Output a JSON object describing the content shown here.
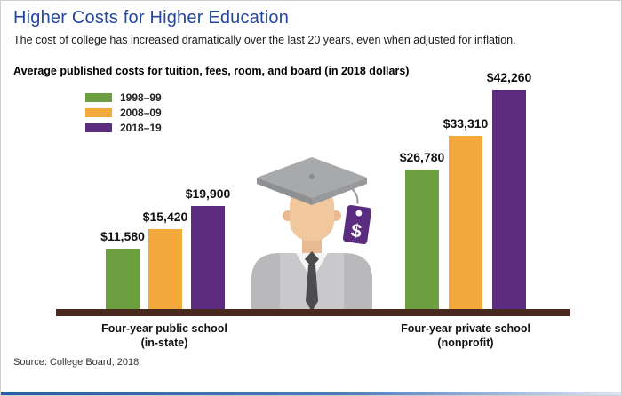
{
  "page": {
    "title": "Higher Costs for Higher Education",
    "subtitle": "The cost of college has increased dramatically over the last 20 years, even when adjusted for inflation.",
    "source": "Source: College Board, 2018"
  },
  "chart_data": {
    "type": "bar",
    "title": "Average published costs for tuition, fees, room, and board (in 2018 dollars)",
    "categories": [
      {
        "line1": "Four-year public school",
        "line2": "(in-state)",
        "full": "Four-year public school (in-state)"
      },
      {
        "line1": "Four-year private school",
        "line2": "(nonprofit)",
        "full": "Four-year private school (nonprofit)"
      }
    ],
    "series": [
      {
        "name": "1998–99",
        "color": "#6d9e3f",
        "values": [
          11580,
          26780
        ],
        "labels": [
          "$11,580",
          "$26,780"
        ]
      },
      {
        "name": "2008–09",
        "color": "#f4a93c",
        "values": [
          15420,
          33310
        ],
        "labels": [
          "$15,420",
          "$33,310"
        ]
      },
      {
        "name": "2018–19",
        "color": "#5b2c80",
        "values": [
          19900,
          42260
        ],
        "labels": [
          "$19,900",
          "$42,260"
        ]
      }
    ],
    "ylim": [
      0,
      45000
    ],
    "grid": false,
    "legend_position": "top-left"
  },
  "graduate": {
    "tag_symbol": "$"
  },
  "colors": {
    "title_blue": "#26479e",
    "baseline_brown": "#472a1d",
    "accent_rule_blue": "#2b5ca8"
  }
}
